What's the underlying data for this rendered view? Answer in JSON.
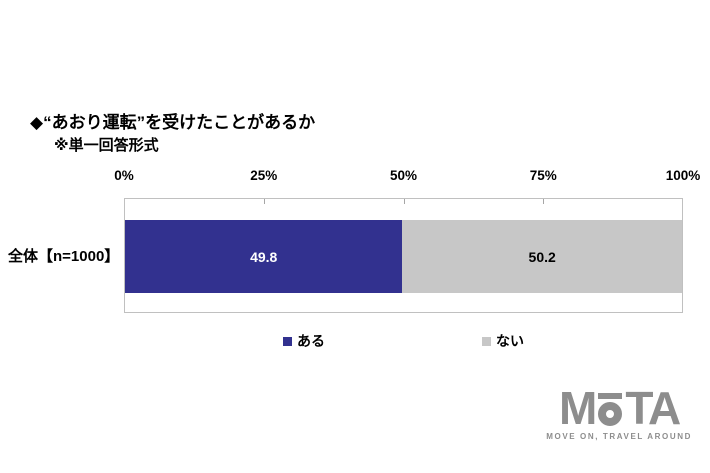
{
  "header": {
    "title": "◆“あおり運転”を受けたことがあるか",
    "subtitle": "※単一回答形式"
  },
  "chart_data": {
    "type": "bar",
    "orientation": "horizontal",
    "stacked": true,
    "title": "◆“あおり運転”を受けたことがあるか",
    "subtitle": "※単一回答形式",
    "categories": [
      "全体【n=1000】"
    ],
    "series": [
      {
        "name": "ある",
        "values": [
          49.8
        ],
        "value_labels": [
          "49.8"
        ],
        "color": "#32318f",
        "value_text_color": "#ffffff"
      },
      {
        "name": "ない",
        "values": [
          50.2
        ],
        "value_labels": [
          "50.2"
        ],
        "color": "#c7c7c7",
        "value_text_color": "#000000"
      }
    ],
    "x_ticks": [
      "0%",
      "25%",
      "50%",
      "75%",
      "100%"
    ],
    "xlim": [
      0,
      100
    ],
    "grid": false,
    "legend_position": "bottom",
    "plot_border_color": "#c0c0c0"
  },
  "logo": {
    "text": "MoTA",
    "letter_m": "M",
    "letters_ta": "TA",
    "tagline": "MOVE ON, TRAVEL AROUND",
    "color": "#8d8d8d"
  }
}
